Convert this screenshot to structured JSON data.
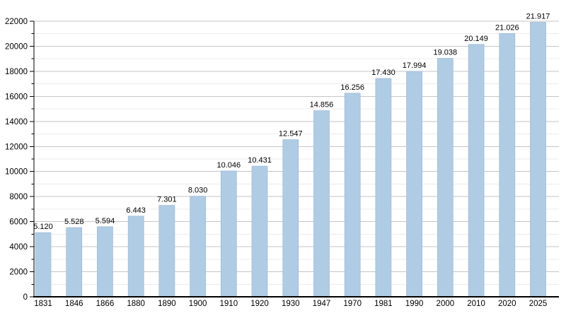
{
  "chart_data": {
    "type": "bar",
    "title": "",
    "xlabel": "",
    "ylabel": "",
    "categories": [
      "1831",
      "1846",
      "1866",
      "1880",
      "1890",
      "1900",
      "1910",
      "1920",
      "1930",
      "1947",
      "1970",
      "1981",
      "1990",
      "2000",
      "2010",
      "2020",
      "2025"
    ],
    "values": [
      5120,
      5528,
      5594,
      6443,
      7301,
      8030,
      10046,
      10431,
      12547,
      14856,
      16256,
      17430,
      17994,
      19038,
      20149,
      21026,
      21917
    ],
    "bar_labels": [
      "5.120",
      "5.528",
      "5.594",
      "6.443",
      "7.301",
      "8.030",
      "10.046",
      "10.431",
      "12.547",
      "14.856",
      "16.256",
      "17.430",
      "17.994",
      "19.038",
      "20.149",
      "21.026",
      "21.917"
    ],
    "ylim": [
      0,
      22000
    ],
    "y_major_step": 2000,
    "y_minor_step": 1000,
    "y_tick_labels": [
      "0",
      "2000",
      "4000",
      "6000",
      "8000",
      "10000",
      "12000",
      "14000",
      "16000",
      "18000",
      "20000",
      "22000"
    ],
    "grid": true,
    "legend_position": "none",
    "colors": {
      "bar_fill": "#b0cbe4",
      "bar_stroke": "#9fbcd8",
      "major_grid": "#c6c6c6",
      "minor_grid": "#ececec",
      "axis": "#000000",
      "text": "#000000",
      "background": "#ffffff"
    }
  }
}
